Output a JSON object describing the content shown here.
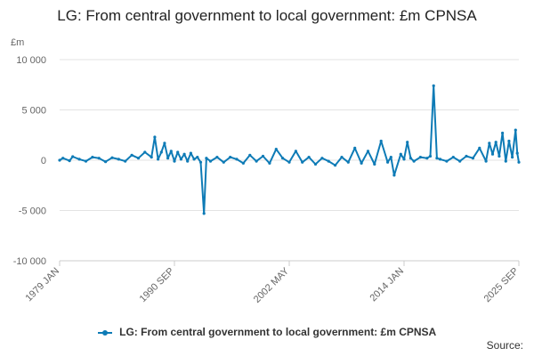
{
  "chart_data": {
    "type": "line",
    "title": "LG: From central government to local government: £m CPNSA",
    "unit_label": "£m",
    "ylim": [
      -10000,
      10000
    ],
    "y_ticks": [
      10000,
      5000,
      0,
      -5000,
      -10000
    ],
    "y_tick_labels": [
      "10 000",
      "5 000",
      "0",
      "-5 000",
      "-10 000"
    ],
    "x_tick_labels": [
      "1979 JAN",
      "1990 SEP",
      "2002 MAY",
      "2014 JAN",
      "2025 SEP"
    ],
    "x_range": [
      "1979 JAN",
      "2025 SEP"
    ],
    "grid": true,
    "legend_position": "bottom",
    "series": [
      {
        "name": "LG: From central government to local government: £m CPNSA",
        "color": "#0e7bb6",
        "points": [
          [
            "1979 JAN",
            0
          ],
          [
            "1979 MAY",
            200
          ],
          [
            "1980 JAN",
            -50
          ],
          [
            "1980 MAY",
            350
          ],
          [
            "1981 JAN",
            100
          ],
          [
            "1981 SEP",
            -100
          ],
          [
            "1982 MAY",
            300
          ],
          [
            "1983 JAN",
            200
          ],
          [
            "1983 SEP",
            -150
          ],
          [
            "1984 MAY",
            250
          ],
          [
            "1985 JAN",
            100
          ],
          [
            "1985 SEP",
            -100
          ],
          [
            "1986 MAY",
            500
          ],
          [
            "1987 JAN",
            200
          ],
          [
            "1987 SEP",
            800
          ],
          [
            "1988 MAY",
            300
          ],
          [
            "1988 SEP",
            2300
          ],
          [
            "1989 JAN",
            100
          ],
          [
            "1989 MAY",
            800
          ],
          [
            "1989 SEP",
            1700
          ],
          [
            "1990 JAN",
            200
          ],
          [
            "1990 MAY",
            900
          ],
          [
            "1990 SEP",
            -100
          ],
          [
            "1991 JAN",
            800
          ],
          [
            "1991 MAY",
            100
          ],
          [
            "1991 SEP",
            600
          ],
          [
            "1992 JAN",
            -100
          ],
          [
            "1992 MAY",
            700
          ],
          [
            "1992 SEP",
            100
          ],
          [
            "1993 JAN",
            300
          ],
          [
            "1993 MAY",
            -200
          ],
          [
            "1993 SEP",
            -5300
          ],
          [
            "1993 DEC",
            200
          ],
          [
            "1994 MAY",
            -100
          ],
          [
            "1995 JAN",
            300
          ],
          [
            "1995 SEP",
            -200
          ],
          [
            "1996 MAY",
            300
          ],
          [
            "1997 JAN",
            100
          ],
          [
            "1997 SEP",
            -300
          ],
          [
            "1998 MAY",
            500
          ],
          [
            "1999 JAN",
            -100
          ],
          [
            "1999 SEP",
            400
          ],
          [
            "2000 MAY",
            -300
          ],
          [
            "2001 JAN",
            1100
          ],
          [
            "2001 SEP",
            200
          ],
          [
            "2002 MAY",
            -200
          ],
          [
            "2003 JAN",
            900
          ],
          [
            "2003 SEP",
            -200
          ],
          [
            "2004 MAY",
            300
          ],
          [
            "2005 JAN",
            -400
          ],
          [
            "2005 SEP",
            200
          ],
          [
            "2006 MAY",
            -100
          ],
          [
            "2007 JAN",
            -500
          ],
          [
            "2007 SEP",
            300
          ],
          [
            "2008 MAY",
            -200
          ],
          [
            "2009 JAN",
            1200
          ],
          [
            "2009 SEP",
            -300
          ],
          [
            "2010 MAY",
            900
          ],
          [
            "2011 JAN",
            -400
          ],
          [
            "2011 SEP",
            1900
          ],
          [
            "2012 MAY",
            -200
          ],
          [
            "2012 SEP",
            300
          ],
          [
            "2013 JAN",
            -1500
          ],
          [
            "2013 SEP",
            600
          ],
          [
            "2014 JAN",
            100
          ],
          [
            "2014 MAY",
            1800
          ],
          [
            "2014 SEP",
            200
          ],
          [
            "2015 JAN",
            -100
          ],
          [
            "2015 SEP",
            300
          ],
          [
            "2016 MAY",
            200
          ],
          [
            "2016 SEP",
            400
          ],
          [
            "2017 JAN",
            7400
          ],
          [
            "2017 MAY",
            200
          ],
          [
            "2017 SEP",
            100
          ],
          [
            "2018 MAY",
            -100
          ],
          [
            "2019 JAN",
            300
          ],
          [
            "2019 SEP",
            -100
          ],
          [
            "2020 MAY",
            400
          ],
          [
            "2021 JAN",
            200
          ],
          [
            "2021 SEP",
            1200
          ],
          [
            "2022 MAY",
            -100
          ],
          [
            "2022 SEP",
            1700
          ],
          [
            "2023 JAN",
            600
          ],
          [
            "2023 MAY",
            1800
          ],
          [
            "2023 SEP",
            400
          ],
          [
            "2024 JAN",
            2700
          ],
          [
            "2024 MAY",
            -100
          ],
          [
            "2024 SEP",
            1900
          ],
          [
            "2025 JAN",
            300
          ],
          [
            "2025 MAY",
            3000
          ],
          [
            "2025 JUL",
            700
          ],
          [
            "2025 SEP",
            -200
          ]
        ]
      }
    ],
    "source_label": "Source:"
  }
}
